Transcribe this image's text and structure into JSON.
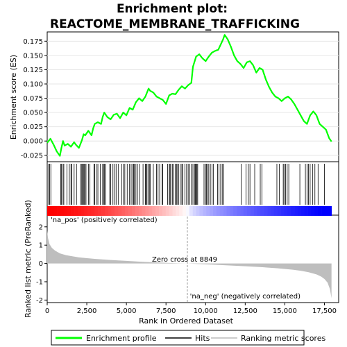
{
  "chart_data": {
    "type": "line",
    "title_line1": "Enrichment plot:",
    "title_line2": "REACTOME_MEMBRANE_TRAFFICKING",
    "top_panel": {
      "ylabel": "Enrichment score (ES)",
      "ylim": [
        -0.035,
        0.19
      ],
      "yticks": [
        -0.025,
        0.0,
        0.025,
        0.05,
        0.075,
        0.1,
        0.125,
        0.15,
        0.175
      ],
      "ytick_labels": [
        "-0.025",
        "0.000",
        "0.025",
        "0.050",
        "0.075",
        "0.100",
        "0.125",
        "0.150",
        "0.175"
      ],
      "series": [
        {
          "name": "Enrichment profile",
          "color": "#00ff00",
          "x": [
            0,
            200,
            400,
            600,
            800,
            900,
            1000,
            1100,
            1300,
            1500,
            1700,
            1800,
            2000,
            2200,
            2300,
            2400,
            2600,
            2800,
            2900,
            3000,
            3200,
            3400,
            3500,
            3600,
            3800,
            4000,
            4200,
            4400,
            4600,
            4800,
            5000,
            5200,
            5400,
            5600,
            5800,
            6000,
            6200,
            6400,
            6500,
            6700,
            6900,
            7100,
            7300,
            7500,
            7700,
            7900,
            8100,
            8300,
            8500,
            8700,
            8900,
            9100,
            9200,
            9400,
            9600,
            9800,
            10000,
            10200,
            10400,
            10600,
            10800,
            11000,
            11100,
            11200,
            11400,
            11600,
            11800,
            12000,
            12200,
            12400,
            12600,
            12800,
            13000,
            13200,
            13400,
            13600,
            13800,
            14000,
            14200,
            14400,
            14600,
            14800,
            15000,
            15200,
            15400,
            15600,
            15800,
            16000,
            16200,
            16400,
            16600,
            16800,
            17000,
            17200,
            17400,
            17600,
            17800,
            17950
          ],
          "y": [
            -0.003,
            0.004,
            -0.006,
            -0.018,
            -0.026,
            -0.012,
            0.0,
            -0.008,
            -0.005,
            -0.01,
            -0.002,
            -0.006,
            -0.012,
            0.002,
            0.012,
            0.01,
            0.018,
            0.01,
            0.022,
            0.03,
            0.033,
            0.03,
            0.042,
            0.05,
            0.042,
            0.038,
            0.046,
            0.048,
            0.04,
            0.05,
            0.045,
            0.058,
            0.055,
            0.068,
            0.075,
            0.07,
            0.078,
            0.092,
            0.088,
            0.085,
            0.078,
            0.075,
            0.072,
            0.065,
            0.08,
            0.083,
            0.082,
            0.09,
            0.096,
            0.092,
            0.098,
            0.102,
            0.13,
            0.148,
            0.152,
            0.145,
            0.14,
            0.148,
            0.155,
            0.158,
            0.16,
            0.172,
            0.178,
            0.186,
            0.178,
            0.165,
            0.15,
            0.14,
            0.135,
            0.128,
            0.138,
            0.14,
            0.133,
            0.12,
            0.128,
            0.125,
            0.108,
            0.095,
            0.085,
            0.078,
            0.075,
            0.07,
            0.075,
            0.078,
            0.073,
            0.065,
            0.055,
            0.045,
            0.035,
            0.03,
            0.045,
            0.052,
            0.045,
            0.03,
            0.025,
            0.02,
            0.005,
            -0.001
          ]
        }
      ]
    },
    "hits_panel": {
      "name": "Hits",
      "positions": [
        90,
        150,
        230,
        850,
        900,
        1000,
        1050,
        1250,
        1400,
        1500,
        1550,
        1700,
        1850,
        2100,
        2180,
        2230,
        2280,
        2330,
        2380,
        2450,
        2600,
        2700,
        2950,
        3000,
        3100,
        3200,
        3350,
        3500,
        3560,
        3620,
        3700,
        3950,
        4000,
        4150,
        4250,
        4350,
        4500,
        4700,
        4800,
        4900,
        5050,
        5200,
        5300,
        5400,
        5450,
        5500,
        5600,
        5700,
        5850,
        6050,
        6200,
        6250,
        6300,
        6400,
        6450,
        6500,
        6700,
        6900,
        7000,
        7100,
        7250,
        7300,
        7600,
        7700,
        7750,
        7800,
        7900,
        8000,
        8100,
        8150,
        8200,
        8300,
        8400,
        8500,
        8550,
        8700,
        8800,
        8900,
        9000,
        9100,
        9200,
        9300,
        9350,
        9400,
        9450,
        9500,
        9900,
        10000,
        10050,
        10100,
        10200,
        10300,
        10400,
        10500,
        10750,
        10850,
        10950,
        11050,
        11150,
        12250,
        12550,
        12700,
        12800,
        13100,
        13450,
        13550,
        14500,
        14650,
        14900,
        14950,
        15050,
        15150,
        15250,
        15950,
        16300,
        16400,
        16500,
        16600,
        16750,
        16900,
        17100,
        17500
      ]
    },
    "ranked_panel": {
      "ylabel": "Ranked list metric (PreRanked)",
      "ylim": [
        -2.1,
        2.6
      ],
      "yticks": [
        -2,
        -1,
        0,
        1,
        2
      ],
      "ytick_labels": [
        "-2",
        "-1",
        "0",
        "1",
        "2"
      ],
      "metric_profile": {
        "x": [
          0,
          50,
          150,
          300,
          500,
          800,
          1200,
          2000,
          3000,
          4000,
          5000,
          6000,
          7000,
          8000,
          8849,
          9500,
          10500,
          11500,
          12500,
          13500,
          14500,
          15500,
          16000,
          16500,
          17000,
          17300,
          17500,
          17700,
          17850,
          17950
        ],
        "y": [
          1.8,
          1.4,
          1.05,
          0.85,
          0.7,
          0.55,
          0.45,
          0.33,
          0.25,
          0.19,
          0.14,
          0.09,
          0.05,
          0.02,
          0.0,
          -0.03,
          -0.07,
          -0.11,
          -0.15,
          -0.2,
          -0.26,
          -0.34,
          -0.4,
          -0.48,
          -0.6,
          -0.72,
          -0.85,
          -1.05,
          -1.4,
          -1.9
        ]
      },
      "zero_cross_label": "Zero cross at 8849",
      "zero_cross_x": 8849,
      "pos_label": "'na_pos' (positively correlated)",
      "neg_label": "'na_neg' (negatively correlated)"
    },
    "xlabel": "Rank in Ordered Dataset",
    "xlim": [
      0,
      18400
    ],
    "xticks": [
      0,
      2500,
      5000,
      7500,
      10000,
      12500,
      15000,
      17500
    ],
    "xtick_labels": [
      "0",
      "2,500",
      "5,000",
      "7,500",
      "10,000",
      "12,500",
      "15,000",
      "17,500"
    ],
    "legend": {
      "placement": "bottom",
      "entries": [
        {
          "name": "Enrichment profile",
          "color": "#00ff00"
        },
        {
          "name": "Hits",
          "color": "#000000"
        },
        {
          "name": "Ranking metric scores",
          "color": "#bbbbbb"
        }
      ]
    },
    "colors": {
      "positive": "#ff0000",
      "neutral": "#ffffff",
      "negative": "#0000ff",
      "pos_label": "#cc0000",
      "neg_label": "#0000cc",
      "metric_fill": "#bebebe",
      "zero_cross_line": "#999999"
    }
  }
}
